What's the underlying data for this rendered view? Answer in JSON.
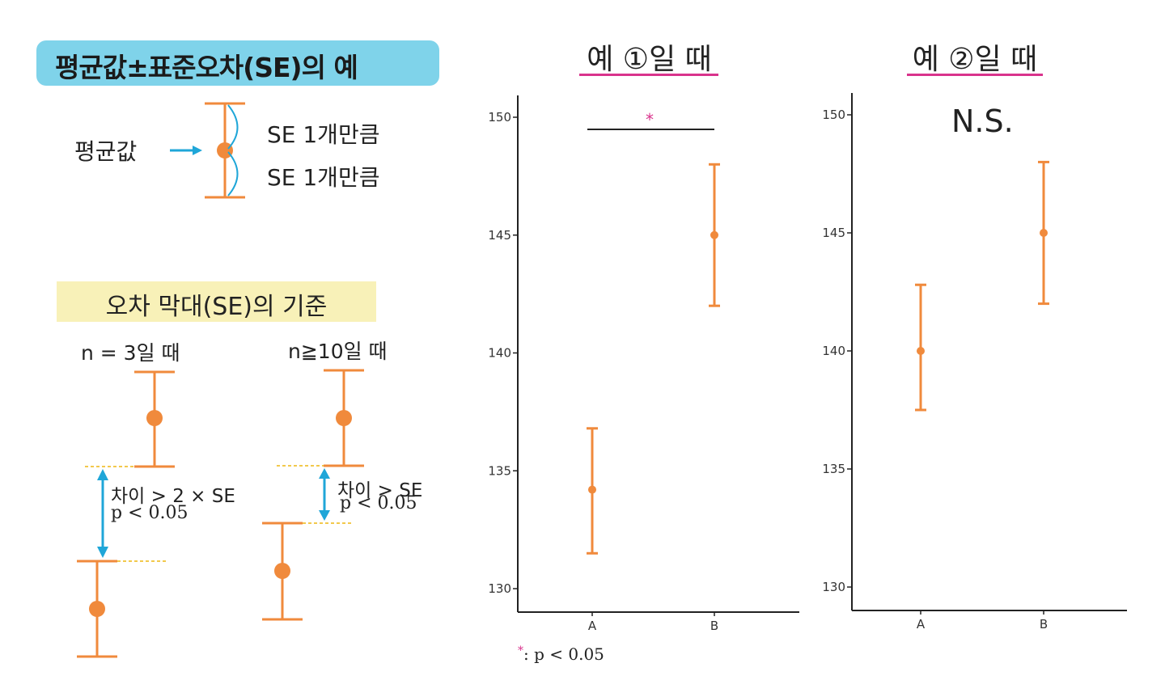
{
  "legend_panel": {
    "title": "평균값±표준오차(SE)의 예",
    "mean_label": "평균값",
    "se_upper_label": "SE 1개만큼",
    "se_lower_label": "SE 1개만큼",
    "criteria_title": "오차 막대(SE)의 기준",
    "case_n3_label": "n = 3일 때",
    "case_n10_label": "n≧10일 때",
    "case_n3_diff": "차이 > 2 × SE",
    "case_n3_p": "p < 0.05",
    "case_n10_diff": "차이 > SE",
    "case_n10_p": "p < 0.05"
  },
  "colors": {
    "orange": "#f08a3c",
    "blue": "#1fa6d8",
    "pink": "#d9338c",
    "axis": "#222222",
    "dash": "#f2c94c"
  },
  "chart_data": [
    {
      "type": "scatter",
      "title": "예 ①일 때",
      "categories": [
        "A",
        "B"
      ],
      "means": [
        134.2,
        145.0
      ],
      "se_lower": [
        131.5,
        142.0
      ],
      "se_upper": [
        136.8,
        148.0
      ],
      "ylim": [
        130,
        150
      ],
      "yticks": [
        130,
        135,
        140,
        145,
        150
      ],
      "annotation": "*"
    },
    {
      "type": "scatter",
      "title": "예 ②일 때",
      "categories": [
        "A",
        "B"
      ],
      "means": [
        140.0,
        145.0
      ],
      "se_lower": [
        137.5,
        142.0
      ],
      "se_upper": [
        142.8,
        148.0
      ],
      "ylim": [
        130,
        150
      ],
      "yticks": [
        130,
        135,
        140,
        145,
        150
      ],
      "annotation": "N.S."
    }
  ],
  "footnote": {
    "star": "*",
    "text": ": p < 0.05"
  }
}
